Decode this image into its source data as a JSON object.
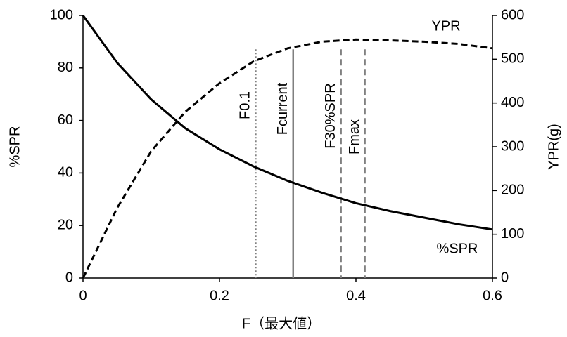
{
  "chart_data": {
    "type": "line",
    "xlabel": "F（最大値）",
    "ylabel": "%SPR",
    "y2label": "YPR(g)",
    "x": [
      0,
      0.05,
      0.1,
      0.15,
      0.2,
      0.25,
      0.3,
      0.35,
      0.4,
      0.45,
      0.5,
      0.55,
      0.6
    ],
    "series": [
      {
        "name": "%SPR",
        "color": "#000000",
        "dash": "solid",
        "axis": "y",
        "values": [
          100,
          82,
          68,
          57,
          49,
          42.5,
          37,
          32.5,
          28.5,
          25.5,
          23,
          20.5,
          18.5
        ]
      },
      {
        "name": "YPR",
        "color": "#000000",
        "dash": "dashed",
        "axis": "y2",
        "values": [
          0,
          160,
          290,
          380,
          445,
          495,
          525,
          540,
          545,
          543,
          540,
          535,
          525
        ]
      }
    ],
    "reference_lines": [
      {
        "label": "F0.1",
        "x": 0.253,
        "style": "dotted",
        "color": "#808080"
      },
      {
        "label": "Fcurrent",
        "x": 0.308,
        "style": "solid",
        "color": "#808080"
      },
      {
        "label": "F30%SPR",
        "x": 0.378,
        "style": "dashed",
        "color": "#808080"
      },
      {
        "label": "Fmax",
        "x": 0.413,
        "style": "dashed",
        "color": "#808080"
      }
    ],
    "xlim": [
      0,
      0.6
    ],
    "xticks": [
      0,
      0.2,
      0.4,
      0.6
    ],
    "ylim": [
      0,
      100
    ],
    "yticks": [
      0,
      20,
      40,
      60,
      80,
      100
    ],
    "y2lim": [
      0,
      600
    ],
    "y2ticks": [
      0,
      100,
      200,
      300,
      400,
      500,
      600
    ],
    "grid": false
  }
}
